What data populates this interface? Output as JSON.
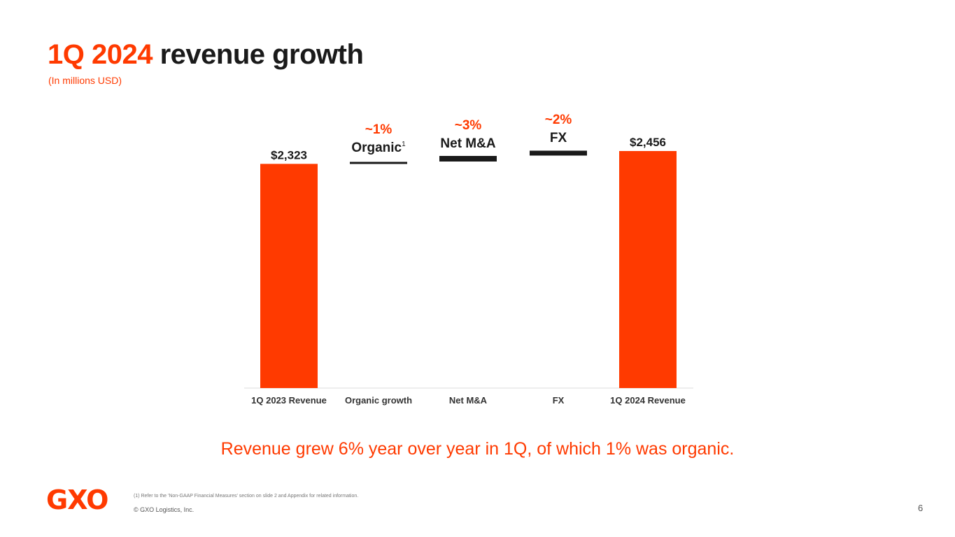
{
  "slide": {
    "title_accent": "1Q 2024",
    "title_rest": " revenue growth",
    "subtitle": "(In millions USD)",
    "headline": "Revenue grew 6% year over year in 1Q, of which 1% was organic.",
    "logo": "GXO",
    "footnote": "(1) Refer to the 'Non-GAAP Financial Measures' section on slide 2 and Appendix for related information.",
    "copyright": "© GXO Logistics, Inc.",
    "page_number": "6"
  },
  "chart_data": {
    "type": "bar",
    "subtype": "waterfall",
    "title": "1Q 2024 revenue growth",
    "unit": "millions USD",
    "categories": [
      "1Q 2023 Revenue",
      "Organic growth",
      "Net M&A",
      "FX",
      "1Q 2024 Revenue"
    ],
    "values": [
      2323,
      23,
      70,
      40,
      2456
    ],
    "kinds": [
      "total",
      "delta",
      "delta",
      "delta",
      "total"
    ],
    "value_labels": [
      "$2,323",
      "",
      "",
      "",
      "$2,456"
    ],
    "delta_pct_labels": [
      "",
      "~1%",
      "~3%",
      "~2%",
      ""
    ],
    "delta_name_labels": [
      "",
      "Organic",
      "Net M&A",
      "FX",
      ""
    ],
    "footnote_marks": [
      "",
      "1",
      "",
      "",
      ""
    ],
    "ylim": [
      0,
      2500
    ],
    "grid": false,
    "colors": {
      "total": "#ff3a00",
      "delta": "#1a1a1a",
      "accent": "#ff3a00",
      "axis": "#dddddd"
    }
  }
}
